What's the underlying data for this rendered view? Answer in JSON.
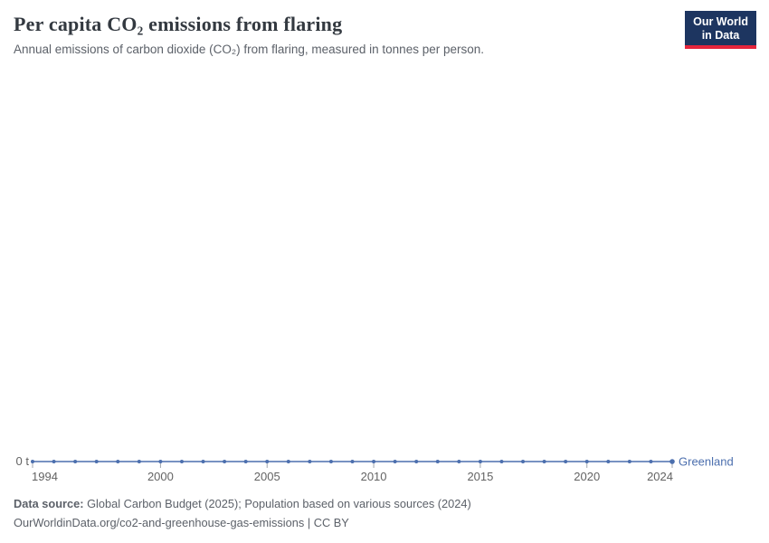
{
  "header": {
    "logo": {
      "line1": "Our World",
      "line2": "in Data"
    }
  },
  "chart_data": {
    "type": "line",
    "title": "Per capita CO₂ emissions from flaring",
    "subtitle": "Annual emissions of carbon dioxide (CO₂) from flaring, measured in tonnes per person.",
    "unit": "t",
    "x": [
      1994,
      1995,
      1996,
      1997,
      1998,
      1999,
      2000,
      2001,
      2002,
      2003,
      2004,
      2005,
      2006,
      2007,
      2008,
      2009,
      2010,
      2011,
      2012,
      2013,
      2014,
      2015,
      2016,
      2017,
      2018,
      2019,
      2020,
      2021,
      2022,
      2023,
      2024
    ],
    "x_ticks": [
      1994,
      2000,
      2005,
      2010,
      2015,
      2020,
      2024
    ],
    "y_axis": {
      "ticks": [
        {
          "value": 0,
          "label": "0 t"
        }
      ]
    },
    "series": [
      {
        "name": "Greenland",
        "color": "#4c6fae",
        "values": [
          0,
          0,
          0,
          0,
          0,
          0,
          0,
          0,
          0,
          0,
          0,
          0,
          0,
          0,
          0,
          0,
          0,
          0,
          0,
          0,
          0,
          0,
          0,
          0,
          0,
          0,
          0,
          0,
          0,
          0,
          0
        ]
      }
    ],
    "grid": false,
    "legend_position": "end-of-line"
  },
  "footer": {
    "source_label": "Data source:",
    "source_text": "Global Carbon Budget (2025); Population based on various sources (2024)",
    "link_text": "OurWorldinData.org/co2-and-greenhouse-gas-emissions",
    "separator": "|",
    "license_text": "CC BY"
  }
}
